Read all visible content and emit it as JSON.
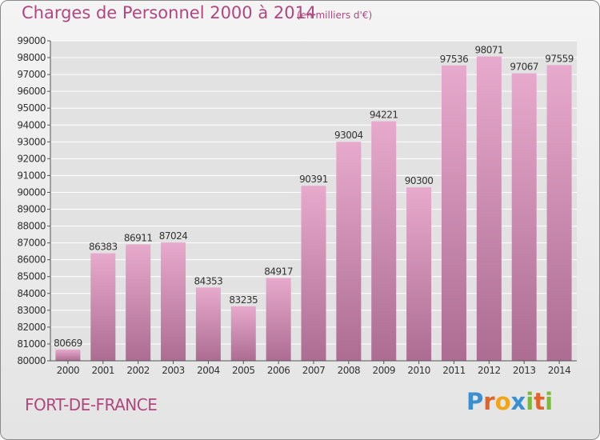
{
  "header": {
    "title": "Charges de Personnel 2000 à 2014",
    "subtitle": "(en milliers d'€)"
  },
  "footer": {
    "city": "FORT-DE-FRANCE",
    "logo": {
      "text": "Proxiti",
      "letter_colors": [
        "#3a8fd0",
        "#e0632a",
        "#f2a516",
        "#3a8fd0",
        "#7bb93a",
        "#e0632a",
        "#7bb93a"
      ]
    }
  },
  "colors": {
    "bar_top": "#e7a9cc",
    "bar_bottom": "#ad6d93",
    "text_accent": "#b0477e",
    "grid": "#ffffff"
  },
  "chart_data": {
    "type": "bar",
    "categories": [
      "2000",
      "2001",
      "2002",
      "2003",
      "2004",
      "2005",
      "2006",
      "2007",
      "2008",
      "2009",
      "2010",
      "2011",
      "2012",
      "2013",
      "2014"
    ],
    "values": [
      80669,
      86383,
      86911,
      87024,
      84353,
      83235,
      84917,
      90391,
      93004,
      94221,
      90300,
      97536,
      98071,
      97067,
      97559
    ],
    "value_labels": [
      "80669",
      "86383",
      "86911",
      "87024",
      "84353",
      "83235",
      "84917",
      "90391",
      "93004",
      "94221",
      "90300",
      "97536",
      "98071",
      "97067",
      "97559"
    ],
    "ylim": [
      80000,
      99000
    ],
    "yticks": [
      80000,
      81000,
      82000,
      83000,
      84000,
      85000,
      86000,
      87000,
      88000,
      89000,
      90000,
      91000,
      92000,
      93000,
      94000,
      95000,
      96000,
      97000,
      98000,
      99000
    ],
    "ytick_labels": [
      "80000",
      "81000",
      "82000",
      "83000",
      "84000",
      "85000",
      "86000",
      "87000",
      "88000",
      "89000",
      "90000",
      "91000",
      "92000",
      "93000",
      "94000",
      "95000",
      "96000",
      "97000",
      "98000",
      "99000"
    ],
    "grid": true,
    "xlabel": "",
    "ylabel": ""
  }
}
